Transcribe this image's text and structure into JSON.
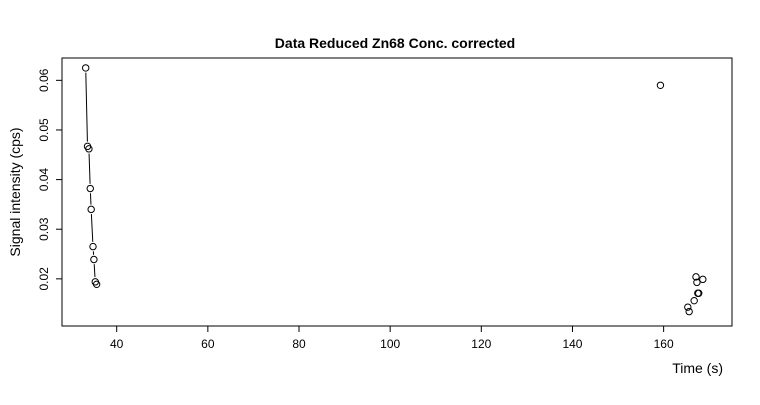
{
  "chart_data": {
    "type": "scatter",
    "title": "Data Reduced Zn68 Conc. corrected",
    "xlabel": "Time (s)",
    "ylabel": "Signal intensity (cps)",
    "xlim": [
      28,
      175
    ],
    "ylim": [
      0.0105,
      0.0645
    ],
    "x_ticks": [
      40,
      60,
      80,
      100,
      120,
      140,
      160
    ],
    "y_ticks": [
      0.02,
      0.03,
      0.04,
      0.05,
      0.06
    ],
    "grid": false,
    "legend": "none",
    "marker": "open-circle",
    "line_color": "#000000",
    "series": [
      {
        "x": [
          33.2,
          33.6,
          33.9,
          34.2,
          34.4,
          34.8,
          35.0,
          35.3,
          35.6
        ],
        "y": [
          0.0625,
          0.0467,
          0.0462,
          0.0382,
          0.034,
          0.0265,
          0.0239,
          0.0194,
          0.0189
        ],
        "connect": true
      },
      {
        "x": [
          159.3,
          165.3,
          165.6,
          166.7,
          167.1,
          167.3,
          167.5,
          167.7,
          168.6
        ],
        "y": [
          0.059,
          0.0143,
          0.0134,
          0.0156,
          0.0204,
          0.0193,
          0.0171,
          0.0171,
          0.0199
        ],
        "connect": false
      }
    ]
  }
}
